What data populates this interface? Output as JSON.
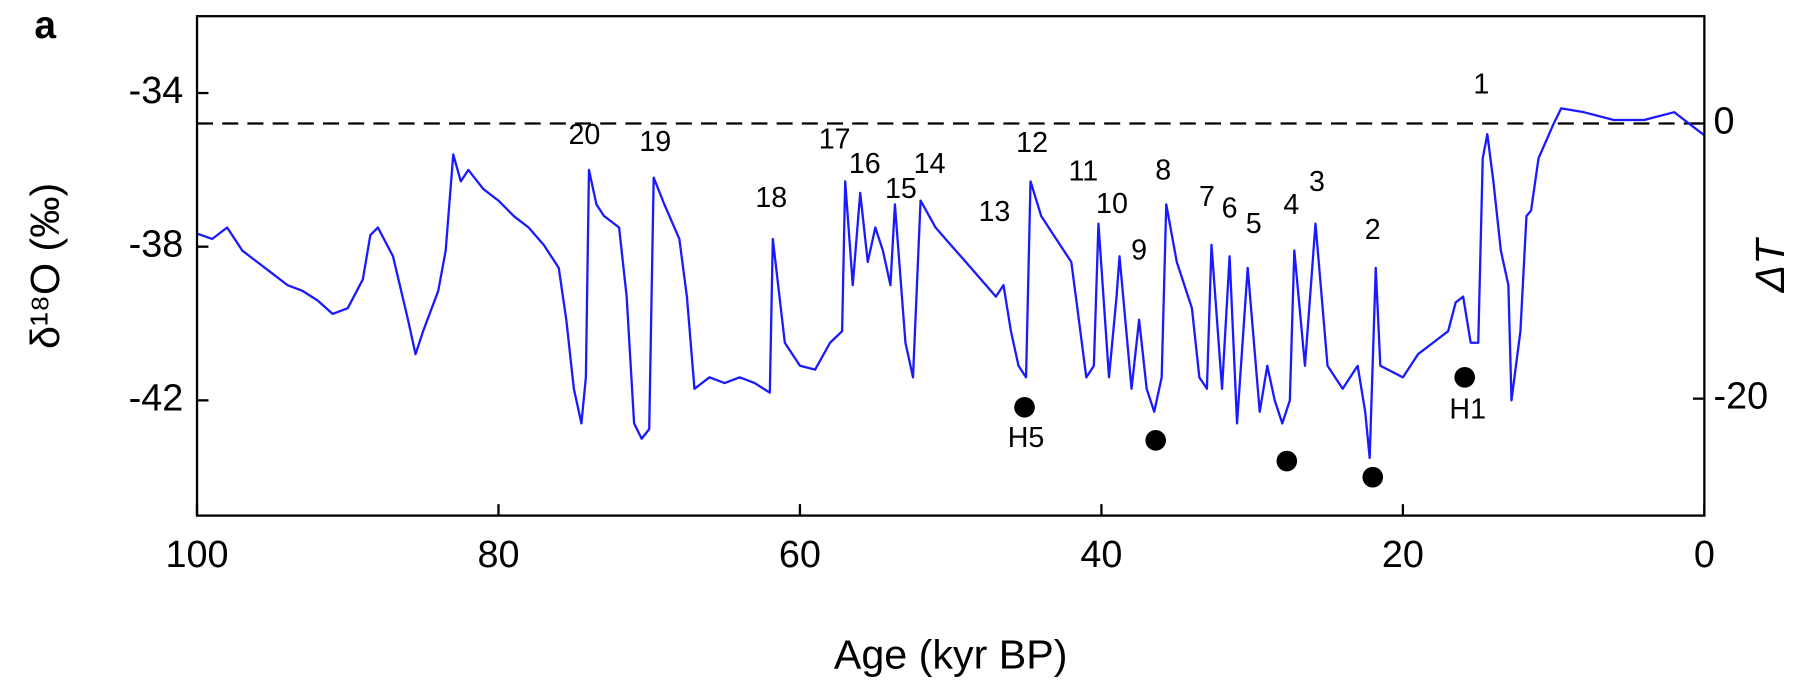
{
  "chart_data": {
    "type": "line",
    "panel_label": "a",
    "xlabel": "Age (kyr BP)",
    "ylabel": "δ¹⁸O (‰)",
    "y2label": "ΔT",
    "color": "#1a1aff",
    "x": [
      100,
      99,
      98,
      97,
      96,
      95,
      94,
      93,
      92,
      91,
      90,
      89,
      88.5,
      88,
      87,
      86,
      85.5,
      85,
      84,
      83.5,
      83,
      82.5,
      82,
      81,
      80,
      79,
      78,
      77,
      76,
      75.5,
      75,
      74.5,
      74.2,
      74,
      73.5,
      73,
      72,
      71.5,
      71,
      70.5,
      70,
      69.7,
      69,
      68,
      67.5,
      67,
      66,
      65,
      64,
      63,
      62,
      61.8,
      61,
      60,
      59,
      58,
      57.2,
      57,
      56.5,
      56,
      55.5,
      55,
      54.5,
      54,
      53.7,
      53,
      52.5,
      52,
      51,
      50,
      49,
      48,
      47,
      46.5,
      46,
      45.5,
      45,
      44.7,
      44,
      43,
      42,
      41.5,
      41,
      40.5,
      40.2,
      39.5,
      39,
      38.8,
      38,
      37.5,
      37,
      36.5,
      36,
      35.7,
      35,
      34,
      33.5,
      33,
      32.7,
      32,
      31.5,
      31,
      30.3,
      29.5,
      29,
      28.5,
      28,
      27.5,
      27.2,
      26.5,
      25.8,
      25,
      24,
      23,
      22.5,
      22.2,
      21.8,
      21.5,
      20,
      19,
      18,
      17,
      16.5,
      16,
      15.5,
      15,
      14.7,
      14.4,
      14,
      13.5,
      13,
      12.8,
      12.2,
      11.8,
      11.5,
      11,
      10,
      9.5,
      8,
      6,
      4,
      2,
      1,
      0
    ],
    "values": [
      -37.66,
      -37.8,
      -37.5,
      -38.1,
      -38.4,
      -38.7,
      -39.0,
      -39.15,
      -39.4,
      -39.75,
      -39.6,
      -38.85,
      -37.7,
      -37.5,
      -38.25,
      -39.9,
      -40.8,
      -40.2,
      -39.15,
      -38.1,
      -35.6,
      -36.3,
      -36.0,
      -36.5,
      -36.8,
      -37.2,
      -37.5,
      -37.95,
      -38.55,
      -39.9,
      -41.7,
      -42.6,
      -41.4,
      -36.0,
      -36.9,
      -37.2,
      -37.5,
      -39.3,
      -42.6,
      -43.0,
      -42.75,
      -36.2,
      -36.9,
      -37.8,
      -39.3,
      -41.7,
      -41.4,
      -41.55,
      -41.4,
      -41.55,
      -41.8,
      -37.8,
      -40.5,
      -41.1,
      -41.2,
      -40.5,
      -40.2,
      -36.3,
      -39.0,
      -36.6,
      -38.4,
      -37.5,
      -38.1,
      -39.0,
      -36.9,
      -40.5,
      -41.4,
      -36.8,
      -37.5,
      -37.95,
      -38.4,
      -38.85,
      -39.3,
      -39.0,
      -40.2,
      -41.1,
      -41.4,
      -36.3,
      -37.2,
      -37.8,
      -38.4,
      -39.9,
      -41.4,
      -41.1,
      -37.4,
      -41.4,
      -39.3,
      -38.25,
      -41.7,
      -39.9,
      -41.7,
      -42.3,
      -41.4,
      -36.9,
      -38.4,
      -39.6,
      -41.4,
      -41.7,
      -37.95,
      -41.7,
      -38.25,
      -42.6,
      -38.55,
      -42.3,
      -41.1,
      -42.0,
      -42.6,
      -42.0,
      -38.1,
      -41.1,
      -37.4,
      -41.1,
      -41.7,
      -41.1,
      -42.3,
      -43.5,
      -38.55,
      -41.1,
      -41.4,
      -40.8,
      -40.5,
      -40.2,
      -39.45,
      -39.3,
      -40.5,
      -40.5,
      -35.7,
      -35.07,
      -36.3,
      -38.1,
      -39.0,
      -42.0,
      -40.2,
      -37.2,
      -37.06,
      -35.7,
      -34.8,
      -34.4,
      -34.5,
      -34.7,
      -34.7,
      -34.5,
      -34.8,
      -35.1
    ],
    "events": {
      "color": "#000000",
      "x": [
        45.1,
        36.4,
        27.7,
        22.0,
        15.9
      ],
      "values": [
        -42.18,
        -43.04,
        -43.58,
        -44.0,
        -41.4
      ]
    },
    "annotations": [
      {
        "text": "20",
        "x": 74.3,
        "y": -35.13
      },
      {
        "text": "19",
        "x": 69.6,
        "y": -35.31
      },
      {
        "text": "18",
        "x": 61.9,
        "y": -36.77
      },
      {
        "text": "17",
        "x": 57.7,
        "y": -35.25
      },
      {
        "text": "16",
        "x": 55.7,
        "y": -35.88
      },
      {
        "text": "15",
        "x": 53.3,
        "y": -36.53
      },
      {
        "text": "14",
        "x": 51.4,
        "y": -35.88
      },
      {
        "text": "13",
        "x": 47.1,
        "y": -37.13
      },
      {
        "text": "12",
        "x": 44.6,
        "y": -35.34
      },
      {
        "text": "11",
        "x": 41.2,
        "y": -36.08
      },
      {
        "text": "10",
        "x": 39.3,
        "y": -36.92
      },
      {
        "text": "9",
        "x": 37.5,
        "y": -38.14
      },
      {
        "text": "8",
        "x": 35.9,
        "y": -36.05
      },
      {
        "text": "7",
        "x": 33.0,
        "y": -36.74
      },
      {
        "text": "6",
        "x": 31.5,
        "y": -37.04
      },
      {
        "text": "5",
        "x": 29.9,
        "y": -37.45
      },
      {
        "text": "4",
        "x": 27.4,
        "y": -36.95
      },
      {
        "text": "3",
        "x": 25.7,
        "y": -36.35
      },
      {
        "text": "2",
        "x": 22.0,
        "y": -37.6
      },
      {
        "text": "1",
        "x": 14.8,
        "y": -33.82
      },
      {
        "text": "H5",
        "x": 45.0,
        "y": -43.02
      },
      {
        "text": "H1",
        "x": 15.7,
        "y": -42.27
      }
    ],
    "reference_line": {
      "axis": "y2",
      "value": 0
    },
    "xlim": [
      100,
      0
    ],
    "ylim": [
      -45,
      -32
    ],
    "y2lim": [
      -28.5,
      7.8
    ],
    "xticks": [
      100,
      80,
      60,
      40,
      20,
      0
    ],
    "yticks": [
      -34,
      -38,
      -42
    ],
    "y2ticks": [
      0,
      -20
    ]
  }
}
